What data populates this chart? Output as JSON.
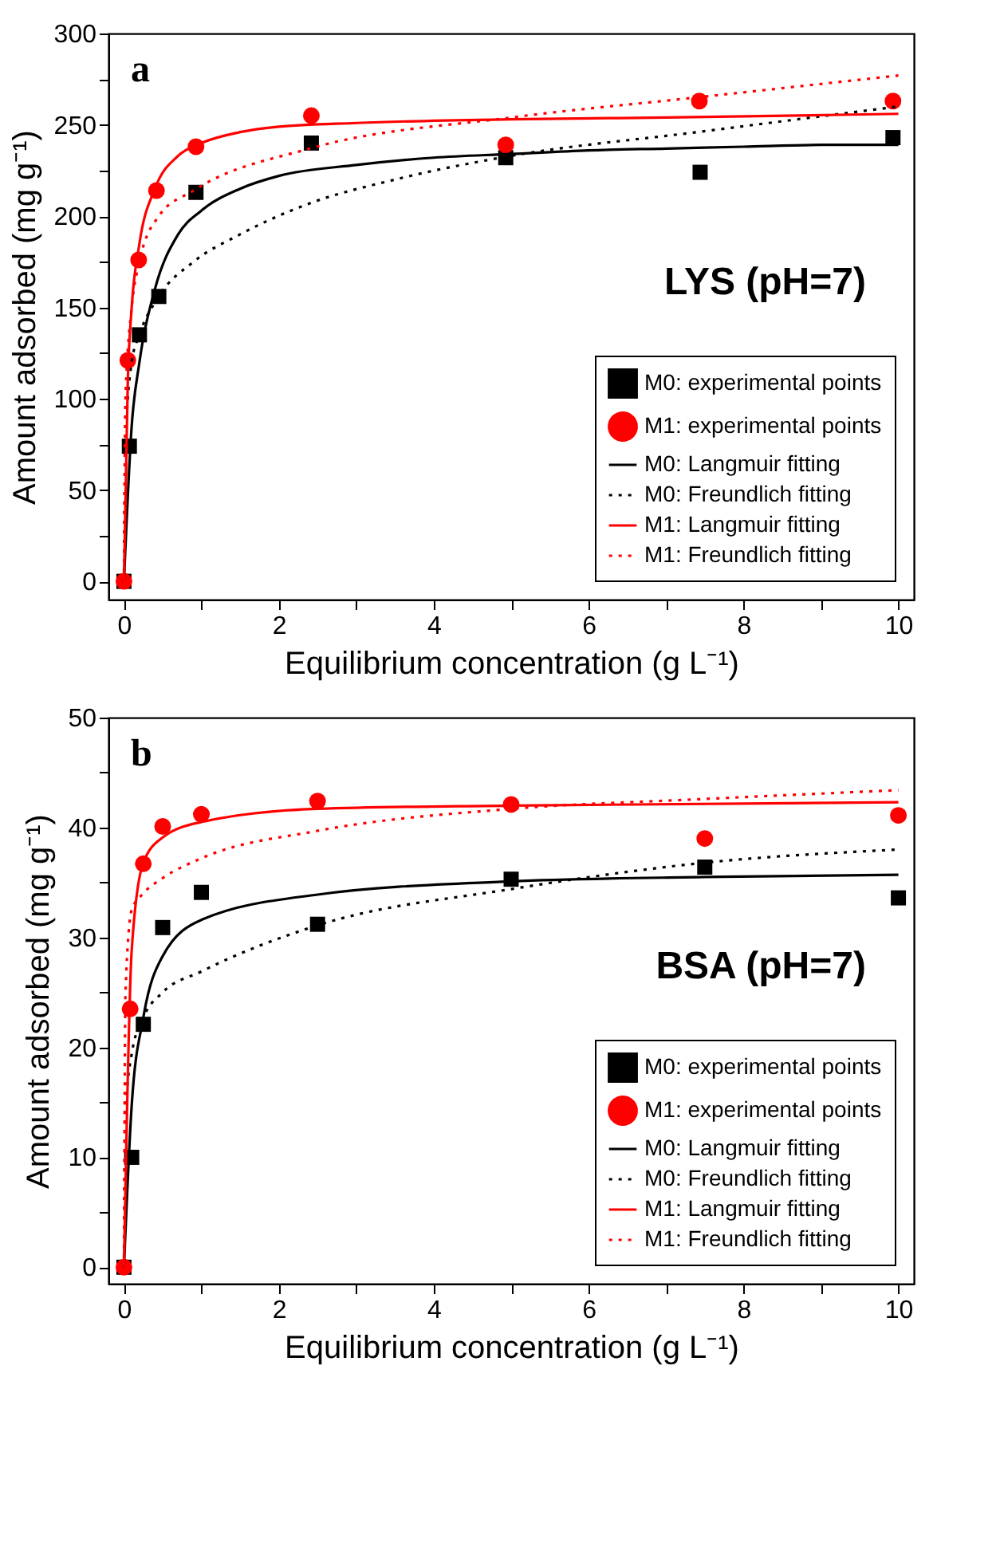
{
  "chart_data": [
    {
      "type": "line",
      "xlabel": "Equilibrium concentration (g L⁻¹)",
      "ylabel": "Amount adsorbed (mg g⁻¹)",
      "annotations": [
        "a",
        "LYS (pH=7)"
      ],
      "xlim": [
        -0.2,
        10.2
      ],
      "ylim": [
        -10,
        300
      ],
      "xticks": [
        0,
        {
          "value": 1,
          "label": null
        },
        2,
        {
          "value": 3,
          "label": null
        },
        4,
        {
          "value": 5,
          "label": null
        },
        6,
        {
          "value": 7,
          "label": null
        },
        8,
        {
          "value": 9,
          "label": null
        },
        10
      ],
      "yticks": [
        0,
        {
          "value": 25,
          "label": null
        },
        50,
        {
          "value": 75,
          "label": null
        },
        100,
        {
          "value": 125,
          "label": null
        },
        150,
        {
          "value": 175,
          "label": null
        },
        200,
        {
          "value": 225,
          "label": null
        },
        250,
        {
          "value": 275,
          "label": null
        },
        300
      ],
      "legend": "bottom right",
      "grid": false,
      "series": [
        {
          "name": "M0: experimental points",
          "type": "scatter",
          "marker": "square",
          "color": "#000000",
          "x": [
            0,
            0.07,
            0.2,
            0.45,
            0.93,
            2.42,
            4.93,
            7.44,
            9.93
          ],
          "values": [
            0,
            74,
            135,
            156,
            213,
            240,
            232,
            224,
            243
          ]
        },
        {
          "name": "M1: experimental points",
          "type": "scatter",
          "marker": "circle",
          "color": "#ff0000",
          "x": [
            0,
            0.05,
            0.19,
            0.42,
            0.93,
            2.42,
            4.93,
            7.43,
            9.93
          ],
          "values": [
            0,
            121,
            176,
            214,
            238,
            255,
            239,
            263,
            263
          ]
        },
        {
          "name": "M0: Langmuir fitting",
          "type": "line",
          "line_style": "solid",
          "color": "#000000",
          "x": [
            0,
            0.1,
            0.2,
            0.4,
            0.7,
            1,
            1.5,
            2,
            3,
            4,
            5,
            6,
            7,
            8,
            9,
            10
          ],
          "values": [
            0,
            85,
            120,
            160,
            190,
            203,
            215,
            222,
            228,
            232,
            234,
            236,
            237,
            238,
            239,
            239
          ]
        },
        {
          "name": "M0: Freundlich fitting",
          "type": "line",
          "line_style": "dotted",
          "color": "#000000",
          "x": [
            0,
            0.02,
            0.1,
            0.2,
            0.45,
            0.9,
            1.5,
            2.4,
            3.5,
            5,
            7.4,
            10
          ],
          "values": [
            0,
            75,
            120,
            135,
            156,
            175,
            190,
            207,
            220,
            233,
            246,
            260
          ]
        },
        {
          "name": "M1: Langmuir fitting",
          "type": "line",
          "line_style": "solid",
          "color": "#ff0000",
          "x": [
            0,
            0.05,
            0.1,
            0.2,
            0.4,
            0.7,
            1,
            1.5,
            2,
            3,
            5,
            7,
            10
          ],
          "values": [
            0,
            110,
            150,
            185,
            215,
            233,
            240,
            246,
            249,
            251,
            253,
            254,
            256
          ]
        },
        {
          "name": "M1: Freundlich fitting",
          "type": "line",
          "line_style": "dotted",
          "color": "#ff0000",
          "x": [
            0,
            0.02,
            0.1,
            0.2,
            0.45,
            0.9,
            2.4,
            5,
            7.4,
            10
          ],
          "values": [
            0,
            100,
            150,
            175,
            200,
            214,
            237,
            254,
            265,
            277
          ]
        }
      ]
    },
    {
      "type": "line",
      "xlabel": "Equilibrium concentration (g L⁻¹)",
      "ylabel": "Amount adsorbed (mg g⁻¹)",
      "annotations": [
        "b",
        "BSA (pH=7)"
      ],
      "xlim": [
        -0.2,
        10.2
      ],
      "ylim": [
        -1.5,
        50
      ],
      "xticks": [
        0,
        {
          "value": 1,
          "label": null
        },
        2,
        {
          "value": 3,
          "label": null
        },
        4,
        {
          "value": 5,
          "label": null
        },
        6,
        {
          "value": 7,
          "label": null
        },
        8,
        {
          "value": 9,
          "label": null
        },
        10
      ],
      "yticks": [
        0,
        {
          "value": 5,
          "label": null
        },
        10,
        {
          "value": 15,
          "label": null
        },
        20,
        {
          "value": 25,
          "label": null
        },
        30,
        {
          "value": 35,
          "label": null
        },
        40,
        {
          "value": 45,
          "label": null
        },
        50
      ],
      "legend": "bottom right",
      "grid": false,
      "series": [
        {
          "name": "M0: experimental points",
          "type": "scatter",
          "marker": "square",
          "color": "#000000",
          "x": [
            0,
            0.1,
            0.25,
            0.5,
            1,
            2.5,
            5,
            7.5,
            10
          ],
          "values": [
            0,
            10,
            22.1,
            30.9,
            34.1,
            31.2,
            35.3,
            36.4,
            33.6
          ]
        },
        {
          "name": "M1: experimental points",
          "type": "scatter",
          "marker": "circle",
          "color": "#ff0000",
          "x": [
            0,
            0.08,
            0.25,
            0.5,
            1,
            2.5,
            5,
            7.5,
            10
          ],
          "values": [
            0,
            23.5,
            36.7,
            40.1,
            41.2,
            42.4,
            42.1,
            39,
            41.1
          ]
        },
        {
          "name": "M0: Langmuir fitting",
          "type": "line",
          "line_style": "solid",
          "color": "#000000",
          "x": [
            0,
            0.1,
            0.25,
            0.5,
            1,
            2.5,
            5,
            7.5,
            10
          ],
          "values": [
            0,
            14.7,
            22.7,
            28.3,
            31.6,
            33.9,
            35.1,
            35.5,
            35.7
          ]
        },
        {
          "name": "M0: Freundlich fitting",
          "type": "line",
          "line_style": "dotted",
          "color": "#000000",
          "x": [
            0,
            0.02,
            0.1,
            0.25,
            0.5,
            1,
            2.5,
            5,
            7.5,
            10
          ],
          "values": [
            0,
            14,
            19.4,
            22.7,
            25,
            26.9,
            31.1,
            34.4,
            36.8,
            38
          ]
        },
        {
          "name": "M1: Langmuir fitting",
          "type": "line",
          "line_style": "solid",
          "color": "#ff0000",
          "x": [
            0,
            0.1,
            0.25,
            0.5,
            1,
            2.5,
            5,
            10
          ],
          "values": [
            0,
            28.8,
            36.8,
            39.1,
            40.5,
            41.7,
            42,
            42.3
          ]
        },
        {
          "name": "M1: Freundlich fitting",
          "type": "line",
          "line_style": "dotted",
          "color": "#ff0000",
          "x": [
            0,
            0.02,
            0.1,
            0.25,
            0.5,
            1,
            2.5,
            5,
            7.5,
            10
          ],
          "values": [
            0,
            25,
            32.5,
            34,
            35.4,
            37.2,
            39.7,
            41.7,
            42.6,
            43.4
          ]
        }
      ]
    }
  ]
}
